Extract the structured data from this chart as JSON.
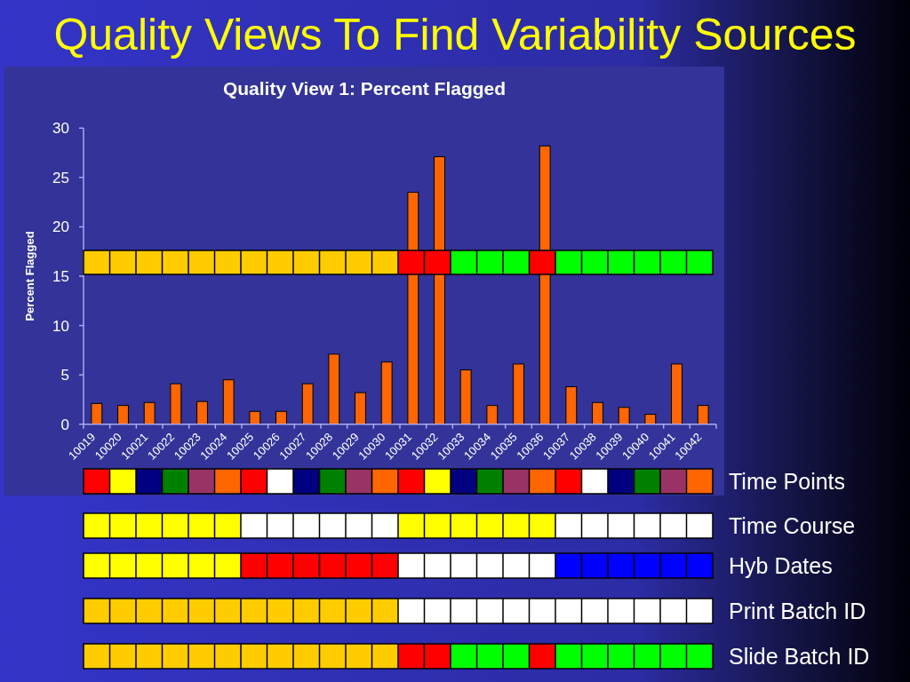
{
  "chart_data": {
    "type": "bar",
    "title": "Quality Views To Find Variability Sources",
    "subtitle": "Quality View 1: Percent Flagged",
    "ylabel": "Percent Flagged",
    "categories": [
      "10019",
      "10020",
      "10021",
      "10022",
      "10023",
      "10024",
      "10025",
      "10026",
      "10027",
      "10028",
      "10029",
      "10030",
      "10031",
      "10032",
      "10033",
      "10034",
      "10035",
      "10036",
      "10037",
      "10038",
      "10039",
      "10040",
      "10041",
      "10042"
    ],
    "values": [
      2.1,
      1.9,
      2.2,
      4.1,
      2.3,
      4.5,
      1.3,
      1.3,
      4.1,
      7.1,
      3.2,
      6.3,
      23.5,
      27.1,
      5.5,
      1.9,
      6.1,
      28.2,
      3.8,
      2.2,
      1.7,
      1.0,
      6.1,
      1.9
    ],
    "color": "#ff6600",
    "ylim": [
      0,
      30
    ],
    "yticks": [
      0,
      5,
      10,
      15,
      20,
      25,
      30
    ],
    "annotations": [
      "Time Points",
      "Time Course",
      "Hyb Dates",
      "Print Batch ID",
      "Slide Batch ID"
    ]
  }
}
